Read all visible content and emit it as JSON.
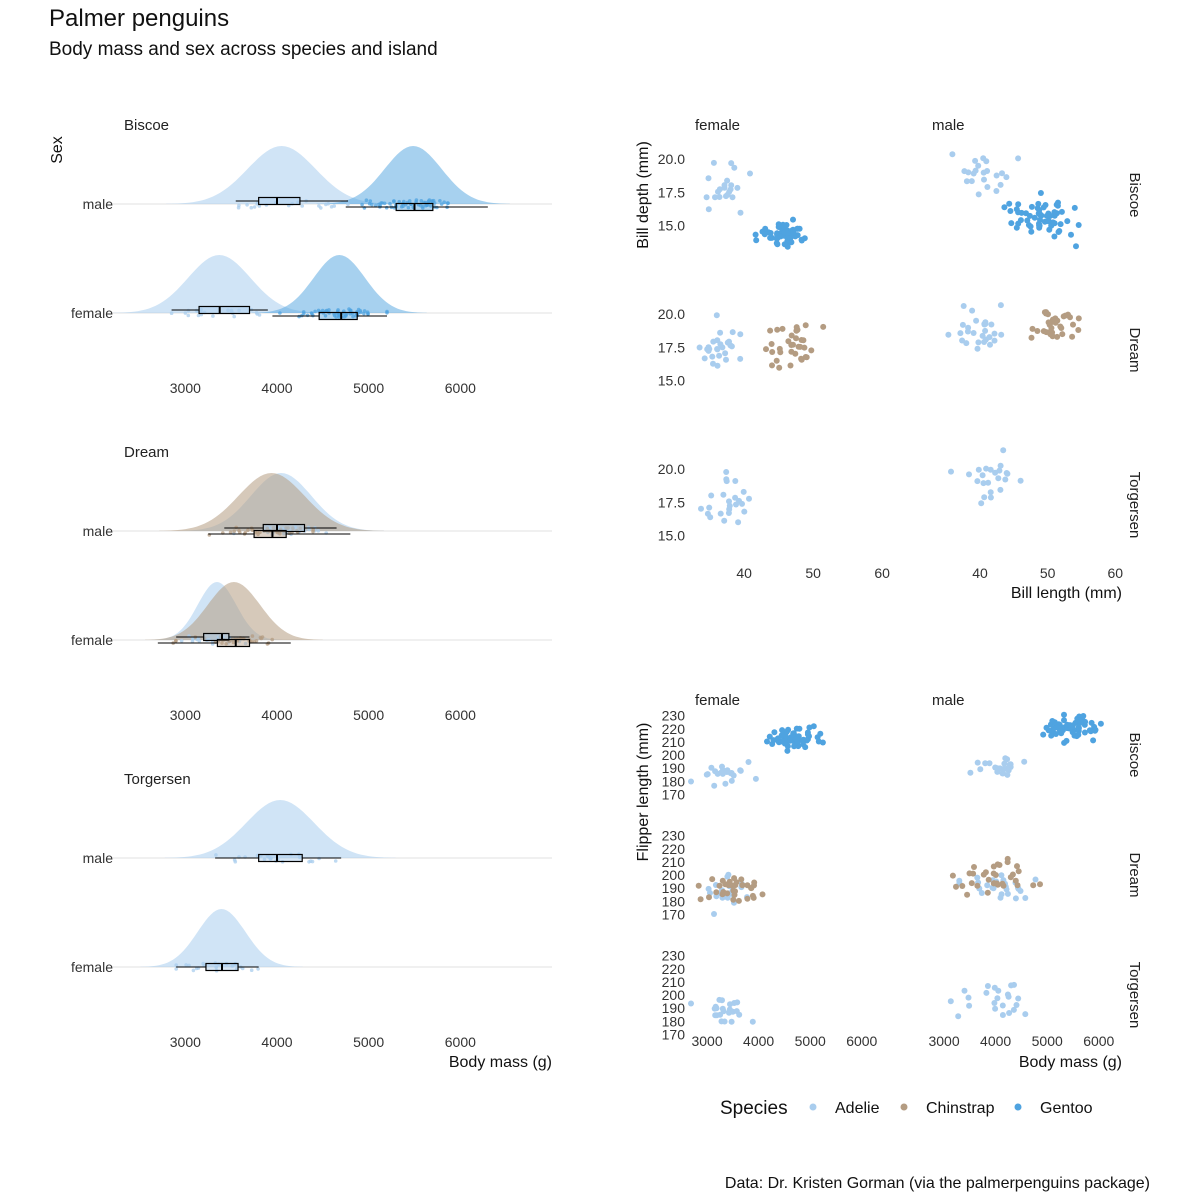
{
  "title": "Palmer penguins",
  "subtitle": "Body mass and sex across species and island",
  "caption": "Data: Dr. Kristen Gorman (via the palmerpenguins package)",
  "colors": {
    "Adelie": "#a9cdee",
    "Chinstrap": "#b49c82",
    "Gentoo": "#4fa3e0"
  },
  "chart_data": [
    {
      "type": "raincloud",
      "facet_var": "island",
      "facets": [
        "Biscoe",
        "Dream",
        "Torgersen"
      ],
      "y_title": "Sex",
      "x_title": "Body mass (g)",
      "y_categories": [
        "male",
        "female"
      ],
      "x_ticks": [
        3000,
        4000,
        5000,
        6000
      ],
      "xlim": [
        2200,
        7000
      ],
      "groups": [
        {
          "island": "Biscoe",
          "sex": "male",
          "species": "Adelie",
          "mean": 4050,
          "sd": 370,
          "q1": 3800,
          "median": 4000,
          "q3": 4250,
          "min": 3550,
          "max": 4775,
          "n": 22
        },
        {
          "island": "Biscoe",
          "sex": "male",
          "species": "Gentoo",
          "mean": 5485,
          "sd": 310,
          "q1": 5300,
          "median": 5500,
          "q3": 5700,
          "min": 4750,
          "max": 6300,
          "n": 61
        },
        {
          "island": "Biscoe",
          "sex": "female",
          "species": "Adelie",
          "mean": 3370,
          "sd": 340,
          "q1": 3150,
          "median": 3375,
          "q3": 3700,
          "min": 2850,
          "max": 3900,
          "n": 22
        },
        {
          "island": "Biscoe",
          "sex": "female",
          "species": "Gentoo",
          "mean": 4680,
          "sd": 280,
          "q1": 4460,
          "median": 4700,
          "q3": 4875,
          "min": 3950,
          "max": 5200,
          "n": 58
        },
        {
          "island": "Dream",
          "sex": "male",
          "species": "Adelie",
          "mean": 4045,
          "sd": 330,
          "q1": 3850,
          "median": 4000,
          "q3": 4300,
          "min": 3425,
          "max": 4650,
          "n": 28
        },
        {
          "island": "Dream",
          "sex": "male",
          "species": "Chinstrap",
          "mean": 3940,
          "sd": 360,
          "q1": 3750,
          "median": 3950,
          "q3": 4100,
          "min": 3250,
          "max": 4800,
          "n": 34
        },
        {
          "island": "Dream",
          "sex": "female",
          "species": "Adelie",
          "mean": 3345,
          "sd": 210,
          "q1": 3200,
          "median": 3400,
          "q3": 3475,
          "min": 2900,
          "max": 3700,
          "n": 27
        },
        {
          "island": "Dream",
          "sex": "female",
          "species": "Chinstrap",
          "mean": 3530,
          "sd": 285,
          "q1": 3350,
          "median": 3550,
          "q3": 3700,
          "min": 2700,
          "max": 4150,
          "n": 34
        },
        {
          "island": "Torgersen",
          "sex": "male",
          "species": "Adelie",
          "mean": 4035,
          "sd": 370,
          "q1": 3800,
          "median": 4000,
          "q3": 4275,
          "min": 3325,
          "max": 4700,
          "n": 23
        },
        {
          "island": "Torgersen",
          "sex": "female",
          "species": "Adelie",
          "mean": 3395,
          "sd": 260,
          "q1": 3225,
          "median": 3400,
          "q3": 3575,
          "min": 2900,
          "max": 3800,
          "n": 24
        }
      ]
    },
    {
      "type": "scatter",
      "facet_cols": [
        "female",
        "male"
      ],
      "facet_rows": [
        "Biscoe",
        "Dream",
        "Torgersen"
      ],
      "x_title": "Bill length (mm)",
      "y_title": "Bill depth (mm)",
      "x_ticks": [
        40,
        50,
        60
      ],
      "y_ticks": [
        15.0,
        17.5,
        20.0
      ],
      "y_tick_labels": [
        "15.0",
        "17.5",
        "20.0"
      ],
      "xlim": [
        32,
        61
      ],
      "ylim": [
        13.0,
        21.6
      ],
      "clouds": [
        {
          "row": "Biscoe",
          "col": "female",
          "species": "Adelie",
          "cx": 37.3,
          "cy": 17.7,
          "sx": 1.7,
          "sy": 0.9,
          "n": 22
        },
        {
          "row": "Biscoe",
          "col": "female",
          "species": "Gentoo",
          "cx": 45.6,
          "cy": 14.3,
          "sx": 1.8,
          "sy": 0.5,
          "n": 58
        },
        {
          "row": "Biscoe",
          "col": "male",
          "species": "Adelie",
          "cx": 40.6,
          "cy": 19.0,
          "sx": 1.7,
          "sy": 0.8,
          "n": 22
        },
        {
          "row": "Biscoe",
          "col": "male",
          "species": "Gentoo",
          "cx": 49.5,
          "cy": 15.7,
          "sx": 2.5,
          "sy": 0.7,
          "n": 61
        },
        {
          "row": "Dream",
          "col": "female",
          "species": "Adelie",
          "cx": 36.9,
          "cy": 17.6,
          "sx": 2.0,
          "sy": 1.0,
          "n": 27
        },
        {
          "row": "Dream",
          "col": "female",
          "species": "Chinstrap",
          "cx": 46.6,
          "cy": 17.6,
          "sx": 2.4,
          "sy": 0.8,
          "n": 34
        },
        {
          "row": "Dream",
          "col": "male",
          "species": "Adelie",
          "cx": 40.1,
          "cy": 18.8,
          "sx": 2.0,
          "sy": 1.0,
          "n": 28
        },
        {
          "row": "Dream",
          "col": "male",
          "species": "Chinstrap",
          "cx": 51.1,
          "cy": 19.3,
          "sx": 1.6,
          "sy": 0.8,
          "n": 34
        },
        {
          "row": "Torgersen",
          "col": "female",
          "species": "Adelie",
          "cx": 37.6,
          "cy": 17.6,
          "sx": 1.9,
          "sy": 0.9,
          "n": 24
        },
        {
          "row": "Torgersen",
          "col": "male",
          "species": "Adelie",
          "cx": 40.6,
          "cy": 19.4,
          "sx": 2.7,
          "sy": 0.9,
          "n": 23
        }
      ]
    },
    {
      "type": "scatter",
      "facet_cols": [
        "female",
        "male"
      ],
      "facet_rows": [
        "Biscoe",
        "Dream",
        "Torgersen"
      ],
      "x_title": "Body mass (g)",
      "y_title": "Flipper length (mm)",
      "x_ticks": [
        3000,
        4000,
        5000,
        6000
      ],
      "y_ticks": [
        170,
        180,
        190,
        200,
        210,
        220,
        230
      ],
      "xlim": [
        2650,
        6450
      ],
      "ylim": [
        168,
        232
      ],
      "clouds": [
        {
          "row": "Biscoe",
          "col": "female",
          "species": "Adelie",
          "cx": 3370,
          "cy": 187,
          "sx": 300,
          "sy": 5,
          "n": 22
        },
        {
          "row": "Biscoe",
          "col": "female",
          "species": "Gentoo",
          "cx": 4680,
          "cy": 212.5,
          "sx": 280,
          "sy": 3.8,
          "n": 58
        },
        {
          "row": "Biscoe",
          "col": "male",
          "species": "Adelie",
          "cx": 4050,
          "cy": 191,
          "sx": 330,
          "sy": 5,
          "n": 22
        },
        {
          "row": "Biscoe",
          "col": "male",
          "species": "Gentoo",
          "cx": 5485,
          "cy": 221.5,
          "sx": 300,
          "sy": 5,
          "n": 61
        },
        {
          "row": "Dream",
          "col": "female",
          "species": "Adelie",
          "cx": 3345,
          "cy": 187.5,
          "sx": 200,
          "sy": 5,
          "n": 27
        },
        {
          "row": "Dream",
          "col": "female",
          "species": "Chinstrap",
          "cx": 3530,
          "cy": 192,
          "sx": 280,
          "sy": 5.5,
          "n": 34
        },
        {
          "row": "Dream",
          "col": "male",
          "species": "Adelie",
          "cx": 4045,
          "cy": 191.5,
          "sx": 330,
          "sy": 5,
          "n": 28
        },
        {
          "row": "Dream",
          "col": "male",
          "species": "Chinstrap",
          "cx": 3940,
          "cy": 200,
          "sx": 360,
          "sy": 6,
          "n": 34
        },
        {
          "row": "Torgersen",
          "col": "female",
          "species": "Adelie",
          "cx": 3395,
          "cy": 188.5,
          "sx": 250,
          "sy": 5,
          "n": 24
        },
        {
          "row": "Torgersen",
          "col": "male",
          "species": "Adelie",
          "cx": 4035,
          "cy": 195,
          "sx": 370,
          "sy": 6,
          "n": 23
        }
      ]
    }
  ],
  "legend": {
    "title": "Species",
    "position": "bottom",
    "entries": [
      "Adelie",
      "Chinstrap",
      "Gentoo"
    ]
  }
}
